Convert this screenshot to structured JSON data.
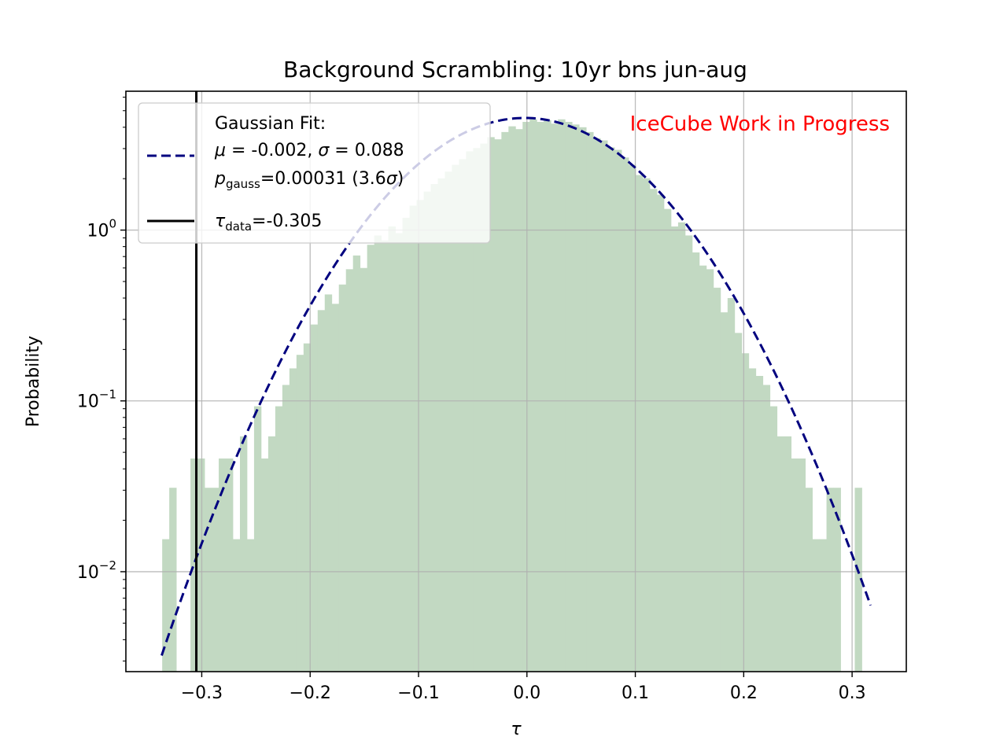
{
  "chart_data": {
    "type": "histogram",
    "title": "Background Scrambling: 10yr bns jun-aug",
    "xlabel": "τ",
    "ylabel": "Probability",
    "xlim": [
      -0.37,
      0.35
    ],
    "ylim": [
      0.0026,
      6.5
    ],
    "yscale": "log",
    "grid": true,
    "xticks": [
      -0.3,
      -0.2,
      -0.1,
      0.0,
      0.1,
      0.2,
      0.3
    ],
    "xtick_labels": [
      "−0.3",
      "−0.2",
      "−0.1",
      "0.0",
      "0.1",
      "0.2",
      "0.3"
    ],
    "yticks": [
      0.01,
      0.1,
      1
    ],
    "ytick_labels": [
      {
        "base": "10",
        "exp": "−2"
      },
      {
        "base": "10",
        "exp": "−1"
      },
      {
        "base": "10",
        "exp": "0"
      }
    ],
    "histogram": {
      "color": "#c2d9c2",
      "bin_edges_start": -0.3365,
      "bin_width": 0.00652,
      "values": [
        0.0155,
        0.031,
        0.0,
        0.0,
        0.046,
        0.046,
        0.031,
        0.031,
        0.046,
        0.046,
        0.0155,
        0.062,
        0.0155,
        0.093,
        0.046,
        0.062,
        0.093,
        0.124,
        0.155,
        0.186,
        0.217,
        0.28,
        0.34,
        0.42,
        0.37,
        0.48,
        0.59,
        0.71,
        0.6,
        0.82,
        0.93,
        0.87,
        1.05,
        0.96,
        1.18,
        1.39,
        1.5,
        1.68,
        1.86,
        2.01,
        2.2,
        2.41,
        2.6,
        2.89,
        3.02,
        3.21,
        3.5,
        3.4,
        3.75,
        4.05,
        3.9,
        4.3,
        4.45,
        4.3,
        4.4,
        4.2,
        4.45,
        4.3,
        4.15,
        4.0,
        3.75,
        3.45,
        3.35,
        3.05,
        2.95,
        2.66,
        2.41,
        2.1,
        2.01,
        1.74,
        1.61,
        1.33,
        1.05,
        1.11,
        0.93,
        0.74,
        0.62,
        0.59,
        0.46,
        0.33,
        0.4,
        0.25,
        0.19,
        0.155,
        0.14,
        0.124,
        0.093,
        0.062,
        0.062,
        0.046,
        0.046,
        0.031,
        0.0155,
        0.0155,
        0.031,
        0.031,
        0.0,
        0.0,
        0.031
      ]
    },
    "fit": {
      "label_line1": "Gaussian Fit:",
      "mu": -0.002,
      "sigma": 0.088,
      "x_start": -0.337,
      "x_end": 0.317,
      "color": "#00007f"
    },
    "data_line": {
      "x": -0.305,
      "color": "#000000"
    },
    "legend": {
      "position": "upper left",
      "fit_line1": "Gaussian Fit:",
      "fit_line2_mu_sym": "μ",
      "fit_line2_mu_val": " = -0.002, ",
      "fit_line2_sigma_sym": "σ",
      "fit_line2_sigma_val": " = 0.088",
      "fit_line3_p": "p",
      "fit_line3_sub": "gauss",
      "fit_line3_val": "=0.00031 (3.6",
      "fit_line3_sigma": "σ",
      "fit_line3_close": ")",
      "data_tau": "τ",
      "data_sub": "data",
      "data_val": "=-0.305"
    },
    "watermark": {
      "text": "IceCube Work in Progress",
      "color": "#ff0000"
    }
  }
}
